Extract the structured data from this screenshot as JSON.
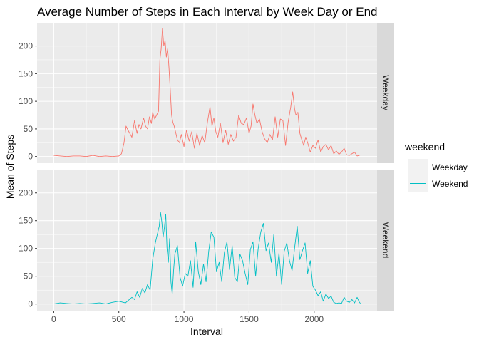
{
  "chart_data": {
    "type": "line",
    "title": "Average Number of Steps in Each Interval by Week Day or End",
    "xlabel": "Interval",
    "ylabel": "Mean of Steps",
    "xlim": [
      -128,
      2483
    ],
    "ylim": [
      -12,
      242
    ],
    "x_ticks": [
      "0",
      "500",
      "1000",
      "1500",
      "2000"
    ],
    "x_tick_values": [
      0,
      500,
      1000,
      1500,
      2000
    ],
    "y_ticks": [
      "0",
      "50",
      "100",
      "150",
      "200"
    ],
    "y_tick_values": [
      0,
      50,
      100,
      150,
      200
    ],
    "grid": true,
    "legend": {
      "title": "weekend",
      "position": "right"
    },
    "facets": [
      {
        "label": "Weekday",
        "color": "#F8766D",
        "x": [
          0,
          50,
          100,
          150,
          200,
          250,
          300,
          350,
          400,
          450,
          500,
          520,
          540,
          555,
          570,
          600,
          620,
          640,
          655,
          670,
          690,
          705,
          720,
          735,
          750,
          760,
          775,
          790,
          805,
          815,
          825,
          835,
          845,
          855,
          865,
          875,
          885,
          895,
          905,
          915,
          925,
          935,
          950,
          965,
          980,
          1000,
          1020,
          1040,
          1060,
          1080,
          1100,
          1120,
          1140,
          1160,
          1180,
          1200,
          1215,
          1230,
          1245,
          1260,
          1280,
          1300,
          1320,
          1340,
          1360,
          1380,
          1400,
          1420,
          1440,
          1460,
          1480,
          1500,
          1515,
          1530,
          1545,
          1560,
          1580,
          1600,
          1620,
          1640,
          1660,
          1680,
          1700,
          1720,
          1740,
          1760,
          1780,
          1800,
          1820,
          1835,
          1850,
          1860,
          1875,
          1890,
          1905,
          1920,
          1935,
          1950,
          1970,
          1990,
          2010,
          2030,
          2050,
          2070,
          2090,
          2110,
          2130,
          2150,
          2170,
          2190,
          2210,
          2230,
          2250,
          2270,
          2290,
          2310,
          2330,
          2355
        ],
        "y": [
          2,
          1,
          0,
          1,
          1,
          0,
          2,
          0,
          1,
          0,
          1,
          5,
          25,
          55,
          48,
          35,
          65,
          42,
          58,
          50,
          70,
          55,
          50,
          72,
          60,
          80,
          68,
          75,
          82,
          175,
          195,
          232,
          200,
          210,
          180,
          195,
          160,
          120,
          75,
          62,
          55,
          45,
          30,
          25,
          40,
          18,
          48,
          28,
          45,
          15,
          42,
          20,
          38,
          25,
          62,
          90,
          55,
          70,
          45,
          35,
          60,
          25,
          48,
          22,
          40,
          28,
          35,
          75,
          60,
          58,
          70,
          42,
          55,
          95,
          75,
          60,
          68,
          45,
          32,
          25,
          40,
          30,
          72,
          35,
          68,
          65,
          20,
          62,
          90,
          117,
          85,
          75,
          80,
          42,
          30,
          20,
          35,
          25,
          8,
          20,
          15,
          30,
          8,
          18,
          22,
          12,
          20,
          5,
          10,
          4,
          8,
          15,
          3,
          2,
          5,
          8,
          1,
          3
        ],
        "legend_label": "Weekday"
      },
      {
        "label": "Weekend",
        "color": "#00BFC4",
        "x": [
          0,
          50,
          100,
          150,
          200,
          250,
          300,
          350,
          400,
          450,
          500,
          550,
          600,
          620,
          640,
          660,
          680,
          700,
          720,
          740,
          760,
          780,
          795,
          810,
          820,
          830,
          840,
          850,
          860,
          870,
          880,
          890,
          900,
          910,
          920,
          930,
          950,
          970,
          990,
          1010,
          1030,
          1050,
          1070,
          1090,
          1110,
          1130,
          1150,
          1170,
          1190,
          1210,
          1230,
          1250,
          1270,
          1290,
          1310,
          1330,
          1350,
          1370,
          1390,
          1410,
          1430,
          1450,
          1470,
          1490,
          1510,
          1530,
          1550,
          1570,
          1590,
          1610,
          1630,
          1650,
          1670,
          1690,
          1710,
          1730,
          1750,
          1770,
          1790,
          1810,
          1830,
          1850,
          1870,
          1890,
          1910,
          1930,
          1950,
          1970,
          1990,
          2010,
          2030,
          2050,
          2070,
          2090,
          2110,
          2130,
          2150,
          2170,
          2190,
          2210,
          2230,
          2250,
          2270,
          2290,
          2310,
          2330,
          2345,
          2355
        ],
        "y": [
          0,
          2,
          1,
          0,
          1,
          0,
          1,
          2,
          0,
          3,
          5,
          2,
          12,
          8,
          22,
          12,
          28,
          20,
          35,
          25,
          80,
          110,
          125,
          140,
          165,
          148,
          120,
          138,
          162,
          100,
          75,
          118,
          40,
          18,
          60,
          90,
          105,
          48,
          32,
          55,
          50,
          78,
          30,
          112,
          58,
          35,
          72,
          40,
          95,
          130,
          120,
          58,
          75,
          40,
          92,
          112,
          62,
          105,
          48,
          40,
          90,
          78,
          55,
          35,
          98,
          112,
          50,
          100,
          130,
          145,
          96,
          110,
          75,
          125,
          50,
          92,
          35,
          95,
          110,
          78,
          60,
          102,
          140,
          80,
          96,
          110,
          55,
          78,
          32,
          25,
          15,
          22,
          5,
          18,
          10,
          14,
          3,
          1,
          2,
          1,
          12,
          5,
          3,
          8,
          2,
          12,
          4,
          1
        ],
        "legend_label": "Weekend"
      }
    ]
  }
}
